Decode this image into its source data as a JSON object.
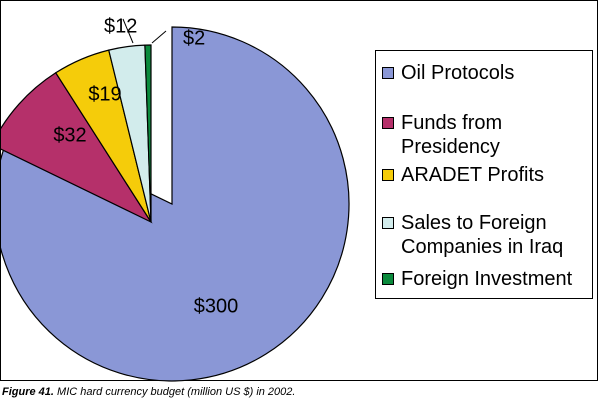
{
  "chart_data": {
    "type": "pie",
    "slices": [
      {
        "label": "Oil Protocols",
        "value": 300,
        "value_label": "$300",
        "color": "#8a97d6"
      },
      {
        "label": "Funds from Presidency",
        "value": 32,
        "value_label": "$32",
        "color": "#b5306a"
      },
      {
        "label": "ARADET Profits",
        "value": 19,
        "value_label": "$19",
        "color": "#f5cc0a"
      },
      {
        "label": "Sales to Foreign Companies in Iraq",
        "value": 12,
        "value_label": "$12",
        "color": "#d2ecec"
      },
      {
        "label": "Foreign Investment",
        "value": 2,
        "value_label": "$2",
        "color": "#0a8a3c"
      }
    ],
    "exploded": [
      "Funds from Presidency",
      "ARADET Profits",
      "Sales to Foreign Companies in Iraq",
      "Foreign Investment"
    ],
    "legend_placement": "right"
  },
  "caption": {
    "figure_label": "Figure 41.",
    "text": " MIC hard currency budget (million US $) in 2002."
  }
}
